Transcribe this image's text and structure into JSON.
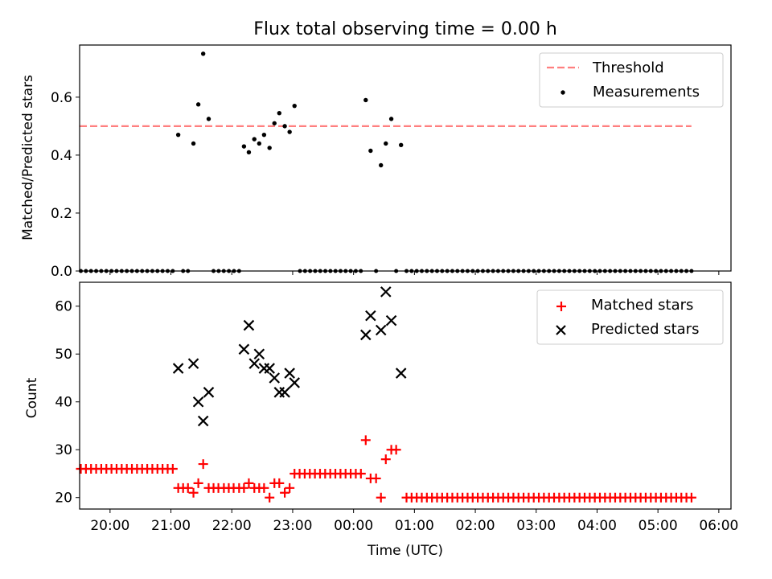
{
  "chart_data": [
    {
      "type": "scatter",
      "title": "Flux total observing time = 0.00 h",
      "xlabel": "",
      "ylabel": "Matched/Predicted stars",
      "x_unit": "hours since 20:00 UTC",
      "xlim": [
        -0.5,
        10.2
      ],
      "ylim": [
        0,
        0.78
      ],
      "yticks": [
        0.0,
        0.2,
        0.4,
        0.6
      ],
      "yticklabels": [
        "0.0",
        "0.2",
        "0.4",
        "0.6"
      ],
      "grid": false,
      "legend_position": "upper right",
      "threshold": {
        "name": "Threshold",
        "value": 0.5,
        "x_range": [
          -0.5,
          9.55
        ],
        "color": "#ff7f7f",
        "style": "dashed"
      },
      "series": [
        {
          "name": "Measurements",
          "color": "#000000",
          "marker": "dot",
          "points": [
            [
              1.12,
              0.47
            ],
            [
              1.37,
              0.44
            ],
            [
              1.45,
              0.575
            ],
            [
              1.53,
              0.75
            ],
            [
              1.62,
              0.525
            ],
            [
              2.2,
              0.43
            ],
            [
              2.28,
              0.41
            ],
            [
              2.37,
              0.455
            ],
            [
              2.45,
              0.44
            ],
            [
              2.53,
              0.47
            ],
            [
              2.62,
              0.425
            ],
            [
              2.7,
              0.51
            ],
            [
              2.78,
              0.545
            ],
            [
              2.87,
              0.5
            ],
            [
              2.95,
              0.48
            ],
            [
              3.03,
              0.57
            ],
            [
              4.2,
              0.59
            ],
            [
              4.28,
              0.415
            ],
            [
              4.45,
              0.365
            ],
            [
              4.53,
              0.44
            ],
            [
              4.62,
              0.525
            ],
            [
              4.78,
              0.435
            ]
          ],
          "zero_runs": [
            {
              "start": -0.48,
              "end": 1.03,
              "step": 0.0839
            },
            {
              "start": 1.2,
              "end": 1.28,
              "step": 0.08
            },
            {
              "start": 1.7,
              "end": 2.12,
              "step": 0.084
            },
            {
              "start": 3.12,
              "end": 4.12,
              "step": 0.0833
            },
            {
              "start": 4.37,
              "end": 4.37,
              "step": 0.08
            },
            {
              "start": 4.7,
              "end": 4.7,
              "step": 0.08
            },
            {
              "start": 4.87,
              "end": 9.55,
              "step": 0.0836
            }
          ]
        }
      ]
    },
    {
      "type": "scatter",
      "title": "",
      "xlabel": "Time (UTC)",
      "ylabel": "Count",
      "x_unit": "hours since 20:00 UTC",
      "xlim": [
        -0.5,
        10.2
      ],
      "ylim": [
        17.6,
        65
      ],
      "xticks": [
        0,
        1,
        2,
        3,
        4,
        5,
        6,
        7,
        8,
        9,
        10
      ],
      "xticklabels": [
        "20:00",
        "21:00",
        "22:00",
        "23:00",
        "00:00",
        "01:00",
        "02:00",
        "03:00",
        "04:00",
        "05:00",
        "06:00"
      ],
      "yticks": [
        20,
        30,
        40,
        50,
        60
      ],
      "yticklabels": [
        "20",
        "30",
        "40",
        "50",
        "60"
      ],
      "grid": false,
      "legend_position": "upper right",
      "series": [
        {
          "name": "Matched stars",
          "color": "#ff0000",
          "marker": "plus",
          "runs": [
            {
              "start": -0.48,
              "end": 1.03,
              "step": 0.0839,
              "value": 26
            },
            {
              "start": 3.03,
              "end": 4.12,
              "step": 0.0839,
              "value": 25
            },
            {
              "start": 4.87,
              "end": 9.55,
              "step": 0.0836,
              "value": 20
            }
          ],
          "points": [
            [
              1.12,
              22
            ],
            [
              1.2,
              22
            ],
            [
              1.28,
              22
            ],
            [
              1.37,
              21
            ],
            [
              1.45,
              23
            ],
            [
              1.53,
              27
            ],
            [
              1.62,
              22
            ],
            [
              1.7,
              22
            ],
            [
              1.78,
              22
            ],
            [
              1.87,
              22
            ],
            [
              1.95,
              22
            ],
            [
              2.03,
              22
            ],
            [
              2.12,
              22
            ],
            [
              2.2,
              22
            ],
            [
              2.28,
              23
            ],
            [
              2.37,
              22
            ],
            [
              2.45,
              22
            ],
            [
              2.53,
              22
            ],
            [
              2.62,
              20
            ],
            [
              2.7,
              23
            ],
            [
              2.78,
              23
            ],
            [
              2.87,
              21
            ],
            [
              2.95,
              22
            ],
            [
              4.2,
              32
            ],
            [
              4.28,
              24
            ],
            [
              4.37,
              24
            ],
            [
              4.45,
              20
            ],
            [
              4.53,
              28
            ],
            [
              4.62,
              30
            ],
            [
              4.7,
              30
            ]
          ]
        },
        {
          "name": "Predicted stars",
          "color": "#000000",
          "marker": "x",
          "points": [
            [
              1.12,
              47
            ],
            [
              1.37,
              48
            ],
            [
              1.45,
              40
            ],
            [
              1.53,
              36
            ],
            [
              1.62,
              42
            ],
            [
              2.2,
              51
            ],
            [
              2.28,
              56
            ],
            [
              2.37,
              48
            ],
            [
              2.45,
              50
            ],
            [
              2.53,
              47
            ],
            [
              2.62,
              47
            ],
            [
              2.7,
              45
            ],
            [
              2.78,
              42
            ],
            [
              2.87,
              42
            ],
            [
              2.95,
              46
            ],
            [
              3.03,
              44
            ],
            [
              4.2,
              54
            ],
            [
              4.28,
              58
            ],
            [
              4.45,
              55
            ],
            [
              4.53,
              63
            ],
            [
              4.62,
              57
            ],
            [
              4.78,
              46
            ]
          ]
        }
      ]
    }
  ]
}
